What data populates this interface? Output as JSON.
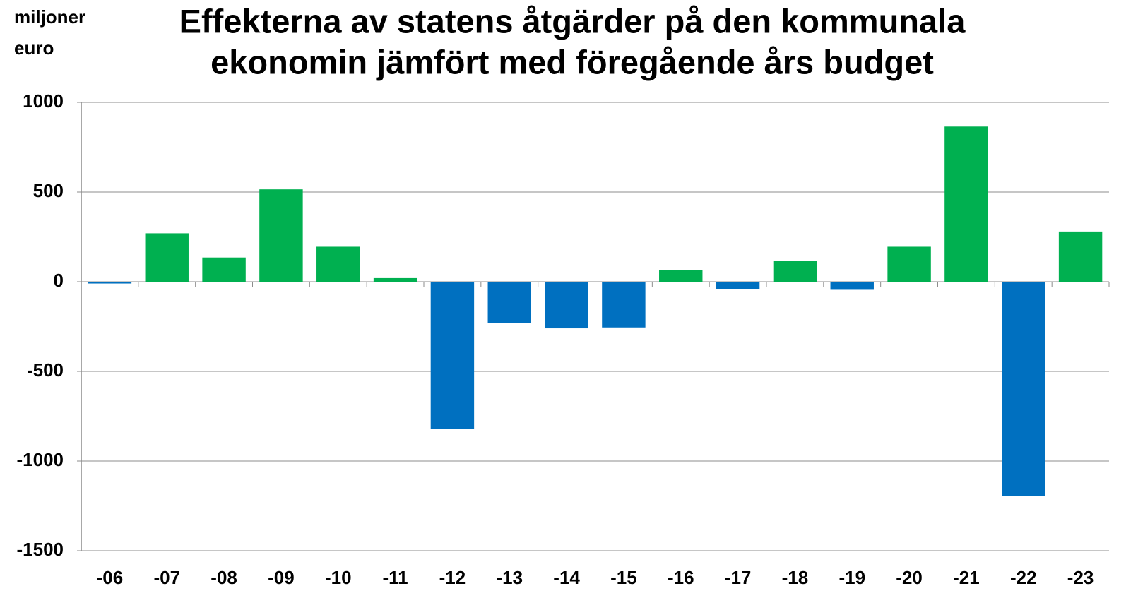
{
  "chart_data": {
    "type": "bar",
    "title": [
      "Effekterna av statens åtgärder på den kommunala",
      "ekonomin jämfört med föregående års budget"
    ],
    "ylabel": [
      "miljoner",
      "euro"
    ],
    "categories": [
      "-06",
      "-07",
      "-08",
      "-09",
      "-10",
      "-11",
      "-12",
      "-13",
      "-14",
      "-15",
      "-16",
      "-17",
      "-18",
      "-19",
      "-20",
      "-21",
      "-22",
      "-23"
    ],
    "values": [
      -10,
      270,
      135,
      515,
      195,
      20,
      -820,
      -230,
      -260,
      -255,
      65,
      -40,
      115,
      -45,
      195,
      865,
      -1195,
      280
    ],
    "color_positive": "#00b050",
    "color_negative": "#0070c0",
    "ylim": [
      -1500,
      1000
    ],
    "yticks": [
      -1500,
      -1000,
      -500,
      0,
      500,
      1000
    ],
    "grid": true
  }
}
